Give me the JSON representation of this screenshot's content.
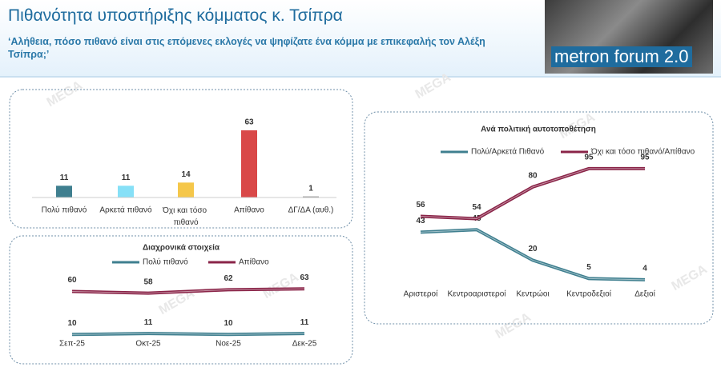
{
  "header": {
    "title": "Πιθανότητα υποστήριξης κόμματος κ. Τσίπρα",
    "subtitle": "‘Αλήθεια, πόσο πιθανό είναι στις επόμενες εκλογές να ψηφίζατε ένα κόμμα με επικεφαλής τον Αλέξη Τσίπρα;’",
    "logo": "metron forum 2.0"
  },
  "watermark": "MEGA",
  "chart_data": [
    {
      "type": "bar",
      "categories": [
        "Πολύ πιθανό",
        "Αρκετά πιθανό",
        "Όχι και τόσο πιθανό",
        "Απίθανο",
        "ΔΓ/ΔΑ (αυθ.)"
      ],
      "values": [
        11,
        11,
        14,
        63,
        1
      ],
      "colors": [
        "#3f7f8f",
        "#86e0f7",
        "#f5c74a",
        "#d94848",
        "#8c8c8c"
      ]
    },
    {
      "type": "line",
      "title": "Διαχρονικά στοιχεία",
      "categories": [
        "Σεπ-25",
        "Οκτ-25",
        "Νοε-25",
        "Δεκ-25"
      ],
      "series": [
        {
          "name": "Πολύ πιθανό",
          "color": "#3f7f8f",
          "values": [
            10,
            11,
            10,
            11
          ]
        },
        {
          "name": "Απίθανο",
          "color": "#8a2448",
          "values": [
            60,
            58,
            62,
            63
          ]
        }
      ]
    },
    {
      "type": "line",
      "title": "Ανά πολιτική αυτοτοποθέτηση",
      "categories": [
        "Αριστεροί",
        "Κεντροαριστεροί",
        "Κεντρώοι",
        "Κεντροδεξιοί",
        "Δεξιοί"
      ],
      "series": [
        {
          "name": "Πολύ/Αρκετά Πιθανό",
          "color": "#3f7f8f",
          "values": [
            43,
            45,
            20,
            5,
            4
          ]
        },
        {
          "name": "Όχι και τόσο πιθανό/Απίθανο",
          "color": "#8a2448",
          "values": [
            56,
            54,
            80,
            95,
            95
          ]
        }
      ]
    }
  ]
}
